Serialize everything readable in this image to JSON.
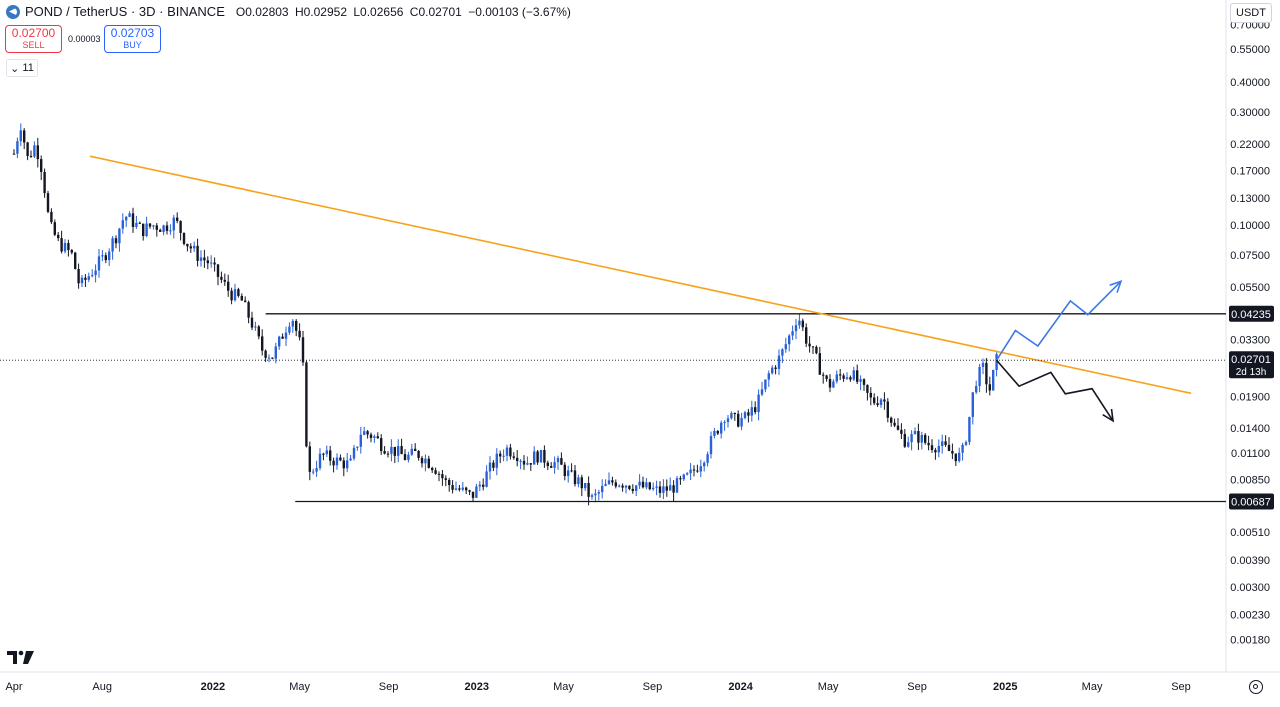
{
  "header": {
    "symbol": "POND / TetherUS · 3D · BINANCE",
    "ohlc": [
      {
        "key": "O",
        "value": "0.02803"
      },
      {
        "key": "H",
        "value": "0.02952"
      },
      {
        "key": "L",
        "value": "0.02656"
      },
      {
        "key": "C",
        "value": "0.02701"
      }
    ],
    "change": "−0.00103 (−3.67%)"
  },
  "trade": {
    "sell_price": "0.02700",
    "sell_label": "SELL",
    "spread": "0.00003",
    "buy_price": "0.02703",
    "buy_label": "BUY",
    "indicators_count": "11"
  },
  "currency_button": "USDT",
  "chart_data": {
    "type": "candlestick",
    "y_scale": "log",
    "ylim": [
      0.00145,
      0.82
    ],
    "x_ticks": [
      "Apr",
      "Aug",
      "2022",
      "May",
      "Sep",
      "2023",
      "May",
      "Sep",
      "2024",
      "May",
      "Sep",
      "2025",
      "May",
      "Sep"
    ],
    "y_ticks": [
      "0.70000",
      "0.55000",
      "0.40000",
      "0.30000",
      "0.22000",
      "0.17000",
      "0.13000",
      "0.10000",
      "0.07500",
      "0.05500",
      "0.04235",
      "0.03300",
      "0.02701",
      "0.01900",
      "0.01400",
      "0.01100",
      "0.00850",
      "0.00687",
      "0.00510",
      "0.00390",
      "0.00300",
      "0.00230",
      "0.00180"
    ],
    "price_path": [
      [
        "2021-04-01",
        0.2
      ],
      [
        "2021-04-10",
        0.27
      ],
      [
        "2021-04-20",
        0.19
      ],
      [
        "2021-05-01",
        0.22
      ],
      [
        "2021-05-10",
        0.17
      ],
      [
        "2021-05-20",
        0.1
      ],
      [
        "2021-06-01",
        0.085
      ],
      [
        "2021-06-20",
        0.075
      ],
      [
        "2021-07-01",
        0.055
      ],
      [
        "2021-07-20",
        0.065
      ],
      [
        "2021-08-01",
        0.072
      ],
      [
        "2021-08-20",
        0.09
      ],
      [
        "2021-09-01",
        0.11
      ],
      [
        "2021-09-10",
        0.105
      ],
      [
        "2021-09-25",
        0.095
      ],
      [
        "2021-10-10",
        0.1
      ],
      [
        "2021-10-25",
        0.098
      ],
      [
        "2021-11-10",
        0.105
      ],
      [
        "2021-11-25",
        0.085
      ],
      [
        "2021-12-10",
        0.075
      ],
      [
        "2021-12-25",
        0.07
      ],
      [
        "2022-01-10",
        0.06
      ],
      [
        "2022-01-25",
        0.052
      ],
      [
        "2022-02-10",
        0.048
      ],
      [
        "2022-02-25",
        0.038
      ],
      [
        "2022-03-10",
        0.03
      ],
      [
        "2022-03-25",
        0.028
      ],
      [
        "2022-04-10",
        0.036
      ],
      [
        "2022-04-20",
        0.042
      ],
      [
        "2022-05-01",
        0.032
      ],
      [
        "2022-05-08",
        0.022
      ],
      [
        "2022-05-12",
        0.0085
      ],
      [
        "2022-05-20",
        0.0095
      ],
      [
        "2022-06-01",
        0.0108
      ],
      [
        "2022-06-20",
        0.0102
      ],
      [
        "2022-07-10",
        0.0098
      ],
      [
        "2022-07-25",
        0.0135
      ],
      [
        "2022-08-10",
        0.013
      ],
      [
        "2022-08-25",
        0.0118
      ],
      [
        "2022-09-10",
        0.0112
      ],
      [
        "2022-09-25",
        0.0105
      ],
      [
        "2022-10-10",
        0.011
      ],
      [
        "2022-10-25",
        0.0102
      ],
      [
        "2022-11-05",
        0.0095
      ],
      [
        "2022-11-20",
        0.0082
      ],
      [
        "2022-12-05",
        0.0078
      ],
      [
        "2022-12-25",
        0.0072
      ],
      [
        "2023-01-10",
        0.0085
      ],
      [
        "2023-01-25",
        0.01
      ],
      [
        "2023-02-10",
        0.0115
      ],
      [
        "2023-02-25",
        0.011
      ],
      [
        "2023-03-10",
        0.01
      ],
      [
        "2023-03-25",
        0.0108
      ],
      [
        "2023-04-10",
        0.0102
      ],
      [
        "2023-04-25",
        0.0098
      ],
      [
        "2023-05-10",
        0.0088
      ],
      [
        "2023-05-25",
        0.0082
      ],
      [
        "2023-06-10",
        0.007
      ],
      [
        "2023-06-25",
        0.0078
      ],
      [
        "2023-07-10",
        0.0084
      ],
      [
        "2023-07-25",
        0.0082
      ],
      [
        "2023-08-10",
        0.008
      ],
      [
        "2023-08-25",
        0.0078
      ],
      [
        "2023-09-10",
        0.0076
      ],
      [
        "2023-09-25",
        0.0078
      ],
      [
        "2023-10-10",
        0.0082
      ],
      [
        "2023-10-25",
        0.009
      ],
      [
        "2023-11-10",
        0.0105
      ],
      [
        "2023-11-25",
        0.013
      ],
      [
        "2023-12-10",
        0.016
      ],
      [
        "2023-12-25",
        0.015
      ],
      [
        "2024-01-10",
        0.0155
      ],
      [
        "2024-01-25",
        0.018
      ],
      [
        "2024-02-10",
        0.024
      ],
      [
        "2024-02-25",
        0.028
      ],
      [
        "2024-03-10",
        0.035
      ],
      [
        "2024-03-20",
        0.042
      ],
      [
        "2024-04-01",
        0.033
      ],
      [
        "2024-04-15",
        0.027
      ],
      [
        "2024-05-01",
        0.021
      ],
      [
        "2024-05-15",
        0.023
      ],
      [
        "2024-06-01",
        0.024
      ],
      [
        "2024-06-15",
        0.021
      ],
      [
        "2024-07-01",
        0.018
      ],
      [
        "2024-07-15",
        0.019
      ],
      [
        "2024-08-01",
        0.014
      ],
      [
        "2024-08-15",
        0.0125
      ],
      [
        "2024-09-01",
        0.013
      ],
      [
        "2024-09-15",
        0.012
      ],
      [
        "2024-10-01",
        0.0118
      ],
      [
        "2024-10-15",
        0.0112
      ],
      [
        "2024-11-01",
        0.0105
      ],
      [
        "2024-11-10",
        0.014
      ],
      [
        "2024-11-20",
        0.022
      ],
      [
        "2024-12-01",
        0.025
      ],
      [
        "2024-12-10",
        0.02
      ],
      [
        "2024-12-20",
        0.027
      ]
    ],
    "horizontal_lines": [
      {
        "value": 0.04235,
        "label": "0.04235",
        "from": "2022-03-15"
      },
      {
        "value": 0.00687,
        "label": "0.00687",
        "from": "2022-04-25"
      }
    ],
    "trendline": {
      "color": "#f7a21b",
      "from": [
        "2021-07-15",
        0.195
      ],
      "to": [
        "2025-09-15",
        0.0196
      ]
    },
    "last_price": {
      "value": 0.02701,
      "label": "0.02701",
      "countdown": "2d 13h"
    },
    "scenario_bullish": {
      "color": "#3d79e6",
      "path": [
        [
          "2024-12-20",
          0.027
        ],
        [
          "2025-01-15",
          0.036
        ],
        [
          "2025-02-15",
          0.031
        ],
        [
          "2025-04-01",
          0.048
        ],
        [
          "2025-04-25",
          0.042
        ],
        [
          "2025-06-10",
          0.058
        ]
      ]
    },
    "scenario_bearish": {
      "color": "#131722",
      "path": [
        [
          "2024-12-20",
          0.027
        ],
        [
          "2025-01-20",
          0.021
        ],
        [
          "2025-03-05",
          0.024
        ],
        [
          "2025-03-25",
          0.0195
        ],
        [
          "2025-05-01",
          0.0205
        ],
        [
          "2025-05-30",
          0.015
        ]
      ]
    },
    "colors": {
      "up": "#2a61d6",
      "down": "#131722",
      "background": "#ffffff",
      "label_bg": "#131722"
    }
  }
}
